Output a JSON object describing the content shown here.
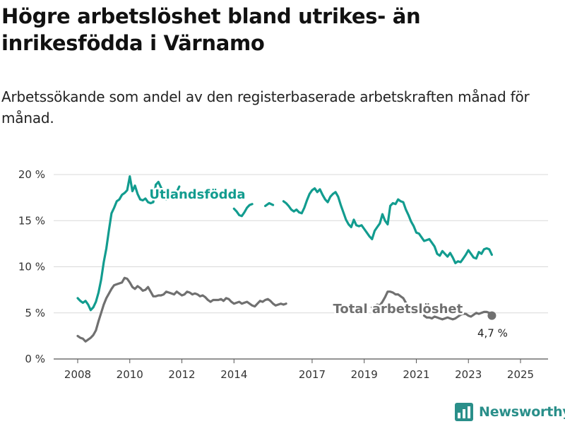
{
  "header": {
    "title": "Högre arbetslöshet bland utrikes- än inrikesfödda i Värnamo",
    "subtitle": "Arbetssökande som andel av den registerbaserade arbetskraften månad för månad."
  },
  "brand": {
    "name": "Newsworthy",
    "icon": "newsworthy-logo-icon"
  },
  "chart_data": {
    "type": "line",
    "title": "Högre arbetslöshet bland utrikes- än inrikesfödda i Värnamo",
    "subtitle": "Arbetssökande som andel av den registerbaserade arbetskraften månad för månad.",
    "xlabel": "",
    "ylabel": "",
    "xlim": [
      2007.5,
      2026.0
    ],
    "ylim": [
      0,
      21
    ],
    "y_ticks": [
      0,
      5,
      10,
      15,
      20
    ],
    "y_tick_labels": [
      "0 %",
      "5 %",
      "10 %",
      "15 %",
      "20 %"
    ],
    "x_ticks": [
      2008,
      2010,
      2012,
      2014,
      2017,
      2019,
      2021,
      2023,
      2025
    ],
    "x_tick_labels": [
      "2008",
      "2010",
      "2012",
      "2014",
      "2017",
      "2019",
      "2021",
      "2023",
      "2025"
    ],
    "grid": "horizontal",
    "legend": "direct-labels",
    "series": [
      {
        "name": "Utlandsfödda",
        "color": "#129c8f",
        "label_at": [
          2010.75,
          17.4
        ],
        "points": [
          [
            2008.0,
            6.6
          ],
          [
            2008.1,
            6.3
          ],
          [
            2008.2,
            6.1
          ],
          [
            2008.3,
            6.3
          ],
          [
            2008.4,
            5.9
          ],
          [
            2008.5,
            5.3
          ],
          [
            2008.6,
            5.6
          ],
          [
            2008.7,
            6.2
          ],
          [
            2008.8,
            7.2
          ],
          [
            2008.9,
            8.6
          ],
          [
            2009.0,
            10.5
          ],
          [
            2009.1,
            12.0
          ],
          [
            2009.2,
            14.0
          ],
          [
            2009.3,
            15.8
          ],
          [
            2009.4,
            16.4
          ],
          [
            2009.5,
            17.1
          ],
          [
            2009.6,
            17.3
          ],
          [
            2009.7,
            17.8
          ],
          [
            2009.8,
            18.0
          ],
          [
            2009.9,
            18.3
          ],
          [
            2010.0,
            19.8
          ],
          [
            2010.1,
            18.2
          ],
          [
            2010.2,
            18.8
          ],
          [
            2010.3,
            17.9
          ],
          [
            2010.4,
            17.3
          ],
          [
            2010.5,
            17.2
          ],
          [
            2010.6,
            17.4
          ],
          [
            2010.7,
            17.0
          ],
          [
            2010.8,
            16.9
          ],
          [
            2010.9,
            17.0
          ],
          [
            2011.0,
            18.9
          ],
          [
            2011.1,
            19.2
          ],
          [
            2011.2,
            18.6
          ],
          [
            2011.3,
            18.0
          ],
          [
            2011.4,
            17.3
          ],
          [
            2011.5,
            17.9
          ],
          [
            2011.6,
            17.6
          ],
          [
            2011.7,
            17.5
          ],
          [
            2011.8,
            18.1
          ],
          [
            2011.9,
            18.7
          ],
          null,
          [
            2014.0,
            16.3
          ],
          [
            2014.1,
            16.0
          ],
          [
            2014.2,
            15.6
          ],
          [
            2014.3,
            15.5
          ],
          [
            2014.4,
            15.9
          ],
          [
            2014.5,
            16.4
          ],
          [
            2014.6,
            16.7
          ],
          [
            2014.7,
            16.8
          ],
          null,
          [
            2015.2,
            16.6
          ],
          [
            2015.35,
            16.9
          ],
          [
            2015.5,
            16.7
          ],
          null,
          [
            2015.9,
            17.1
          ],
          [
            2016.0,
            16.9
          ],
          [
            2016.1,
            16.6
          ],
          [
            2016.2,
            16.2
          ],
          [
            2016.3,
            16.0
          ],
          [
            2016.4,
            16.2
          ],
          [
            2016.5,
            15.9
          ],
          [
            2016.6,
            15.8
          ],
          [
            2016.7,
            16.4
          ],
          [
            2016.8,
            17.2
          ],
          [
            2016.9,
            17.9
          ],
          [
            2017.0,
            18.3
          ],
          [
            2017.1,
            18.5
          ],
          [
            2017.2,
            18.1
          ],
          [
            2017.3,
            18.4
          ],
          [
            2017.4,
            17.8
          ],
          [
            2017.5,
            17.3
          ],
          [
            2017.6,
            17.0
          ],
          [
            2017.7,
            17.6
          ],
          [
            2017.8,
            17.9
          ],
          [
            2017.9,
            18.1
          ],
          [
            2018.0,
            17.6
          ],
          [
            2018.1,
            16.7
          ],
          [
            2018.2,
            15.9
          ],
          [
            2018.3,
            15.1
          ],
          [
            2018.4,
            14.6
          ],
          [
            2018.5,
            14.3
          ],
          [
            2018.6,
            15.1
          ],
          [
            2018.7,
            14.5
          ],
          [
            2018.8,
            14.4
          ],
          [
            2018.9,
            14.5
          ],
          [
            2019.0,
            14.1
          ],
          [
            2019.1,
            13.7
          ],
          [
            2019.2,
            13.3
          ],
          [
            2019.3,
            13.0
          ],
          [
            2019.4,
            13.9
          ],
          [
            2019.5,
            14.3
          ],
          [
            2019.6,
            14.7
          ],
          [
            2019.7,
            15.7
          ],
          [
            2019.8,
            15.0
          ],
          [
            2019.9,
            14.6
          ],
          [
            2020.0,
            16.6
          ],
          [
            2020.1,
            16.9
          ],
          [
            2020.2,
            16.8
          ],
          [
            2020.3,
            17.3
          ],
          [
            2020.4,
            17.1
          ],
          [
            2020.5,
            17.0
          ],
          [
            2020.6,
            16.2
          ],
          [
            2020.7,
            15.6
          ],
          [
            2020.8,
            14.9
          ],
          [
            2020.9,
            14.4
          ],
          [
            2021.0,
            13.7
          ],
          [
            2021.1,
            13.6
          ],
          [
            2021.2,
            13.2
          ],
          [
            2021.3,
            12.8
          ],
          [
            2021.4,
            12.9
          ],
          [
            2021.5,
            13.0
          ],
          [
            2021.6,
            12.6
          ],
          [
            2021.7,
            12.2
          ],
          [
            2021.8,
            11.4
          ],
          [
            2021.9,
            11.2
          ],
          [
            2022.0,
            11.7
          ],
          [
            2022.1,
            11.4
          ],
          [
            2022.2,
            11.1
          ],
          [
            2022.3,
            11.5
          ],
          [
            2022.4,
            11.0
          ],
          [
            2022.5,
            10.4
          ],
          [
            2022.6,
            10.6
          ],
          [
            2022.7,
            10.5
          ],
          [
            2022.8,
            10.9
          ],
          [
            2022.9,
            11.3
          ],
          [
            2023.0,
            11.8
          ],
          [
            2023.1,
            11.4
          ],
          [
            2023.2,
            11.0
          ],
          [
            2023.3,
            10.9
          ],
          [
            2023.4,
            11.6
          ],
          [
            2023.5,
            11.4
          ],
          [
            2023.6,
            11.9
          ],
          [
            2023.7,
            12.0
          ],
          [
            2023.8,
            11.9
          ],
          [
            2023.9,
            11.3
          ]
        ]
      },
      {
        "name": "Total arbetslöshet",
        "color": "#707070",
        "label_at": [
          2017.8,
          5.0
        ],
        "end_value_label": "4,7 %",
        "points": [
          [
            2008.0,
            2.5
          ],
          [
            2008.1,
            2.3
          ],
          [
            2008.2,
            2.2
          ],
          [
            2008.3,
            1.9
          ],
          [
            2008.4,
            2.1
          ],
          [
            2008.5,
            2.3
          ],
          [
            2008.6,
            2.6
          ],
          [
            2008.7,
            3.1
          ],
          [
            2008.8,
            4.1
          ],
          [
            2008.9,
            5.0
          ],
          [
            2009.0,
            5.9
          ],
          [
            2009.1,
            6.6
          ],
          [
            2009.2,
            7.1
          ],
          [
            2009.3,
            7.6
          ],
          [
            2009.4,
            8.0
          ],
          [
            2009.5,
            8.1
          ],
          [
            2009.6,
            8.2
          ],
          [
            2009.7,
            8.3
          ],
          [
            2009.8,
            8.8
          ],
          [
            2009.9,
            8.7
          ],
          [
            2010.0,
            8.3
          ],
          [
            2010.1,
            7.8
          ],
          [
            2010.2,
            7.6
          ],
          [
            2010.3,
            7.9
          ],
          [
            2010.4,
            7.7
          ],
          [
            2010.5,
            7.4
          ],
          [
            2010.6,
            7.5
          ],
          [
            2010.7,
            7.8
          ],
          [
            2010.8,
            7.3
          ],
          [
            2010.9,
            6.8
          ],
          [
            2011.0,
            6.8
          ],
          [
            2011.1,
            6.9
          ],
          [
            2011.2,
            6.9
          ],
          [
            2011.3,
            7.0
          ],
          [
            2011.4,
            7.3
          ],
          [
            2011.5,
            7.2
          ],
          [
            2011.6,
            7.1
          ],
          [
            2011.7,
            7.0
          ],
          [
            2011.8,
            7.3
          ],
          [
            2011.9,
            7.1
          ],
          [
            2012.0,
            6.9
          ],
          [
            2012.1,
            7.0
          ],
          [
            2012.2,
            7.3
          ],
          [
            2012.3,
            7.2
          ],
          [
            2012.4,
            7.0
          ],
          [
            2012.5,
            7.1
          ],
          [
            2012.6,
            7.0
          ],
          [
            2012.7,
            6.8
          ],
          [
            2012.8,
            6.9
          ],
          [
            2012.9,
            6.7
          ],
          [
            2013.0,
            6.4
          ],
          [
            2013.1,
            6.2
          ],
          [
            2013.2,
            6.4
          ],
          [
            2013.3,
            6.4
          ],
          [
            2013.4,
            6.4
          ],
          [
            2013.5,
            6.5
          ],
          [
            2013.6,
            6.3
          ],
          [
            2013.7,
            6.6
          ],
          [
            2013.8,
            6.5
          ],
          [
            2013.9,
            6.2
          ],
          [
            2014.0,
            6.0
          ],
          [
            2014.1,
            6.1
          ],
          [
            2014.2,
            6.2
          ],
          [
            2014.3,
            6.0
          ],
          [
            2014.4,
            6.1
          ],
          [
            2014.5,
            6.2
          ],
          [
            2014.6,
            6.0
          ],
          [
            2014.7,
            5.8
          ],
          [
            2014.8,
            5.7
          ],
          [
            2014.9,
            6.0
          ],
          [
            2015.0,
            6.3
          ],
          [
            2015.1,
            6.2
          ],
          [
            2015.2,
            6.4
          ],
          [
            2015.3,
            6.5
          ],
          [
            2015.4,
            6.3
          ],
          [
            2015.5,
            6.0
          ],
          [
            2015.6,
            5.8
          ],
          [
            2015.7,
            5.9
          ],
          [
            2015.8,
            6.0
          ],
          [
            2015.9,
            5.9
          ],
          [
            2016.0,
            6.0
          ],
          null,
          [
            2019.3,
            5.6
          ],
          [
            2019.5,
            5.9
          ],
          [
            2019.6,
            5.8
          ],
          [
            2019.7,
            6.2
          ],
          [
            2019.8,
            6.7
          ],
          [
            2019.9,
            7.3
          ],
          [
            2020.0,
            7.3
          ],
          [
            2020.1,
            7.2
          ],
          [
            2020.2,
            7.0
          ],
          [
            2020.3,
            7.0
          ],
          [
            2020.4,
            6.8
          ],
          [
            2020.5,
            6.6
          ],
          [
            2020.6,
            6.1
          ],
          null,
          [
            2021.3,
            4.7
          ],
          [
            2021.4,
            4.5
          ],
          [
            2021.5,
            4.5
          ],
          [
            2021.6,
            4.4
          ],
          [
            2021.7,
            4.6
          ],
          [
            2021.8,
            4.5
          ],
          [
            2021.9,
            4.4
          ],
          [
            2022.0,
            4.3
          ],
          [
            2022.1,
            4.4
          ],
          [
            2022.2,
            4.5
          ],
          [
            2022.3,
            4.4
          ],
          [
            2022.4,
            4.3
          ],
          [
            2022.5,
            4.4
          ],
          [
            2022.6,
            4.6
          ],
          [
            2022.7,
            4.8
          ],
          [
            2022.8,
            4.9
          ],
          [
            2022.9,
            4.9
          ],
          [
            2023.0,
            4.7
          ],
          [
            2023.1,
            4.6
          ],
          [
            2023.2,
            4.8
          ],
          [
            2023.3,
            5.0
          ],
          [
            2023.4,
            4.9
          ],
          [
            2023.5,
            5.0
          ],
          [
            2023.6,
            5.1
          ],
          [
            2023.7,
            5.1
          ],
          [
            2023.8,
            5.0
          ],
          [
            2023.9,
            4.7
          ]
        ]
      }
    ]
  }
}
